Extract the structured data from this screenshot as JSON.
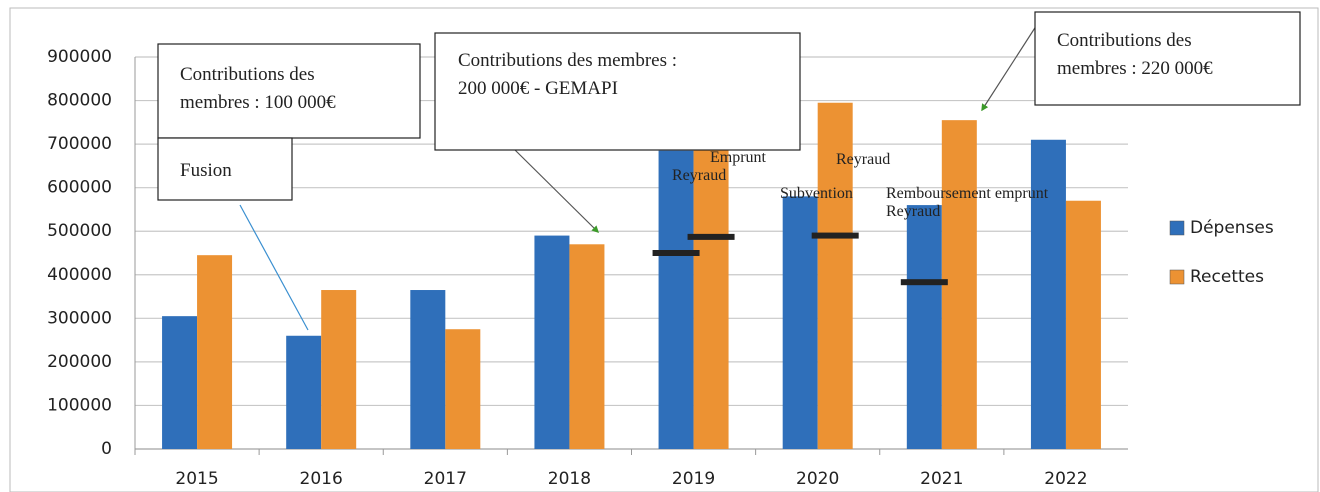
{
  "chart_data": {
    "type": "bar",
    "categories": [
      "2015",
      "2016",
      "2017",
      "2018",
      "2019",
      "2020",
      "2021",
      "2022"
    ],
    "series": [
      {
        "name": "Dépenses",
        "color": "#2f6fba",
        "values": [
          305000,
          260000,
          365000,
          490000,
          685000,
          580000,
          560000,
          710000
        ]
      },
      {
        "name": "Recettes",
        "color": "#ec9233",
        "values": [
          445000,
          365000,
          275000,
          470000,
          725000,
          795000,
          755000,
          570000
        ]
      }
    ],
    "markers": [
      {
        "series": "Dépenses",
        "category": "2019",
        "value": 450000
      },
      {
        "series": "Recettes",
        "category": "2019",
        "value": 487000
      },
      {
        "series": "Recettes",
        "category": "2020",
        "value": 490000
      },
      {
        "series": "Dépenses",
        "category": "2021",
        "value": 383000
      }
    ],
    "ylim": [
      0,
      900000
    ],
    "yticks": [
      0,
      100000,
      200000,
      300000,
      400000,
      500000,
      600000,
      700000,
      800000,
      900000
    ],
    "grid": true,
    "legend": "right",
    "annotations": [
      {
        "lines": [
          "Contributions des",
          "membres : 100 000€"
        ]
      },
      {
        "lines": [
          "Fusion"
        ]
      },
      {
        "lines": [
          "Contributions des membres :",
          "200 000€ - GEMAPI"
        ]
      },
      {
        "lines": [
          "Contributions des",
          "membres : 220 000€"
        ]
      },
      {
        "lines": [
          "Emprunt"
        ]
      },
      {
        "lines": [
          "Reyraud"
        ]
      },
      {
        "lines": [
          "Reyraud"
        ]
      },
      {
        "lines": [
          "Subvention"
        ]
      },
      {
        "lines": [
          "Remboursement emprunt"
        ]
      },
      {
        "lines": [
          "Reyraud"
        ]
      }
    ]
  }
}
